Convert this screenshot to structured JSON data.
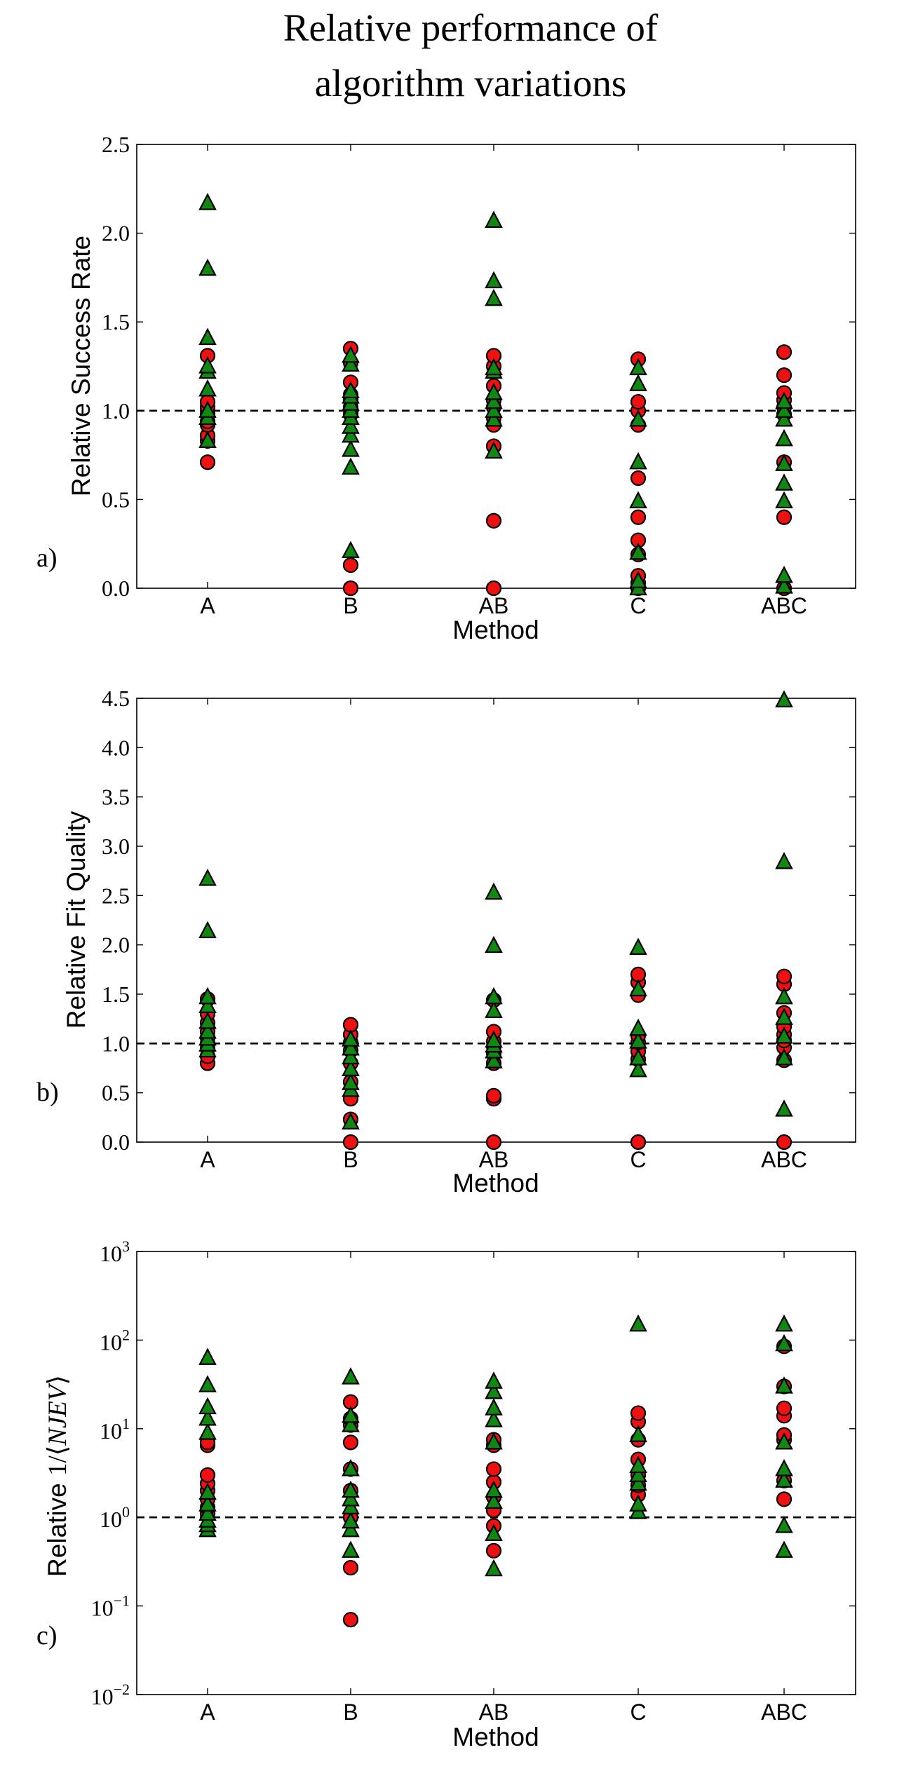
{
  "title_lines": [
    "Relative performance of",
    "algorithm variations"
  ],
  "colors": {
    "circle": "#ee1111",
    "triangle": "#118811",
    "axis": "#000000"
  },
  "chart_data": [
    {
      "type": "scatter",
      "panel_label": "a)",
      "ylabel": "Relative Success Rate",
      "xlabel": "Method",
      "categories": [
        "A",
        "B",
        "AB",
        "C",
        "ABC"
      ],
      "yscale": "linear",
      "ylim": [
        0,
        2.5
      ],
      "yticks": [
        0.0,
        0.5,
        1.0,
        1.5,
        2.0,
        2.5
      ],
      "ytick_labels": [
        "0.0",
        "0.5",
        "1.0",
        "1.5",
        "2.0",
        "2.5"
      ],
      "reference_line": 1.0,
      "series": [
        {
          "name": "circles",
          "marker": "circle",
          "values": [
            [
              0.71,
              0.83,
              0.86,
              0.92,
              0.94,
              0.98,
              1.02,
              1.05,
              1.31
            ],
            [
              0.0,
              0.13,
              0.98,
              1.02,
              1.06,
              1.09,
              1.16,
              1.27,
              1.35
            ],
            [
              0.0,
              0.38,
              0.8,
              0.92,
              0.96,
              1.02,
              1.06,
              1.14,
              1.25,
              1.31
            ],
            [
              0.0,
              0.03,
              0.07,
              0.19,
              0.27,
              0.4,
              0.62,
              0.92,
              1.0,
              1.05,
              1.29
            ],
            [
              0.0,
              0.4,
              0.71,
              0.98,
              1.02,
              1.06,
              1.1,
              1.2,
              1.33
            ]
          ]
        },
        {
          "name": "triangles",
          "marker": "triangle",
          "values": [
            [
              0.83,
              0.96,
              1.0,
              1.12,
              1.22,
              1.25,
              1.41,
              1.8,
              2.17
            ],
            [
              0.21,
              0.68,
              0.78,
              0.86,
              0.91,
              0.96,
              1.0,
              1.04,
              1.08,
              1.11,
              1.26,
              1.31
            ],
            [
              0.77,
              0.95,
              1.0,
              1.05,
              1.1,
              1.22,
              1.24,
              1.63,
              1.73,
              2.07
            ],
            [
              0.0,
              0.04,
              0.2,
              0.49,
              0.71,
              0.95,
              1.15,
              1.24
            ],
            [
              0.01,
              0.07,
              0.49,
              0.59,
              0.7,
              0.84,
              0.95,
              1.0,
              1.05
            ]
          ]
        }
      ]
    },
    {
      "type": "scatter",
      "panel_label": "b)",
      "ylabel": "Relative Fit Quality",
      "xlabel": "Method",
      "categories": [
        "A",
        "B",
        "AB",
        "C",
        "ABC"
      ],
      "yscale": "linear",
      "ylim": [
        0,
        4.5
      ],
      "yticks": [
        0.0,
        0.5,
        1.0,
        1.5,
        2.0,
        2.5,
        3.0,
        3.5,
        4.0,
        4.5
      ],
      "ytick_labels": [
        "0.0",
        "0.5",
        "1.0",
        "1.5",
        "2.0",
        "2.5",
        "3.0",
        "3.5",
        "4.0",
        "4.5"
      ],
      "reference_line": 1.0,
      "series": [
        {
          "name": "circles",
          "marker": "circle",
          "values": [
            [
              0.8,
              0.87,
              0.95,
              1.0,
              1.06,
              1.12,
              1.21,
              1.3,
              1.45
            ],
            [
              0.0,
              0.23,
              0.44,
              0.61,
              0.8,
              0.93,
              1.01,
              1.09,
              1.19
            ],
            [
              0.0,
              0.44,
              0.47,
              0.8,
              0.9,
              0.97,
              1.02,
              1.12,
              1.44
            ],
            [
              0.0,
              0.84,
              0.92,
              1.01,
              1.08,
              1.49,
              1.62,
              1.7
            ],
            [
              0.0,
              0.83,
              0.96,
              1.03,
              1.09,
              1.17,
              1.31,
              1.6,
              1.68
            ]
          ]
        },
        {
          "name": "triangles",
          "marker": "triangle",
          "values": [
            [
              0.93,
              0.99,
              1.05,
              1.12,
              1.22,
              1.38,
              1.47,
              2.14,
              2.67
            ],
            [
              0.2,
              0.53,
              0.6,
              0.74,
              0.86,
              0.95,
              1.04
            ],
            [
              0.82,
              0.92,
              0.98,
              1.03,
              1.33,
              1.47,
              1.99,
              2.53
            ],
            [
              0.73,
              0.85,
              1.02,
              1.15,
              1.55,
              1.97
            ],
            [
              0.33,
              0.85,
              1.07,
              1.26,
              1.47,
              2.84,
              4.48
            ]
          ]
        }
      ]
    },
    {
      "type": "scatter",
      "panel_label": "c)",
      "ylabel": "Relative 1/⟨NJEV⟩",
      "ylabel_parts": {
        "prefix": "Relative ",
        "fraction": "1/⟨",
        "symbol": "NJEV",
        "suffix": "⟩"
      },
      "xlabel": "Method",
      "categories": [
        "A",
        "B",
        "AB",
        "C",
        "ABC"
      ],
      "yscale": "log",
      "ylim_exp": [
        -2,
        3
      ],
      "ytick_exps": [
        -2,
        -1,
        0,
        1,
        2,
        3
      ],
      "ytick_labels": [
        {
          "base": "10",
          "exp": "−2"
        },
        {
          "base": "10",
          "exp": "−1"
        },
        {
          "base": "10",
          "exp": "0"
        },
        {
          "base": "10",
          "exp": "1"
        },
        {
          "base": "10",
          "exp": "2"
        },
        {
          "base": "10",
          "exp": "3"
        }
      ],
      "reference_line": 1.0,
      "series": [
        {
          "name": "circles",
          "marker": "circle",
          "values": [
            [
              1.1,
              1.3,
              1.6,
              2.0,
              2.4,
              3.0,
              6.5,
              7.0
            ],
            [
              0.07,
              0.27,
              1.0,
              2.0,
              3.5,
              7.0,
              11.0,
              13.0,
              20.0
            ],
            [
              0.42,
              0.8,
              1.2,
              1.7,
              2.5,
              3.5,
              6.5,
              7.5
            ],
            [
              1.8,
              2.3,
              3.0,
              4.5,
              7.5,
              12.0,
              15.0
            ],
            [
              1.6,
              2.6,
              7.5,
              8.5,
              14.0,
              17.0,
              30.0,
              85.0
            ]
          ]
        },
        {
          "name": "triangles",
          "marker": "triangle",
          "values": [
            [
              0.72,
              0.82,
              0.92,
              1.1,
              1.4,
              1.9,
              9.0,
              13.0,
              17.5,
              31.0,
              63.0
            ],
            [
              0.42,
              0.72,
              0.9,
              1.3,
              1.6,
              2.0,
              3.5,
              11.0,
              14.0,
              38.0
            ],
            [
              0.26,
              0.65,
              1.5,
              2.0,
              7.0,
              12.5,
              17.0,
              26.0,
              34.0
            ],
            [
              1.15,
              1.4,
              2.4,
              3.0,
              3.8,
              8.5,
              150.0
            ],
            [
              0.42,
              0.8,
              2.6,
              3.5,
              7.0,
              30.0,
              90.0,
              150.0
            ]
          ]
        }
      ]
    }
  ]
}
